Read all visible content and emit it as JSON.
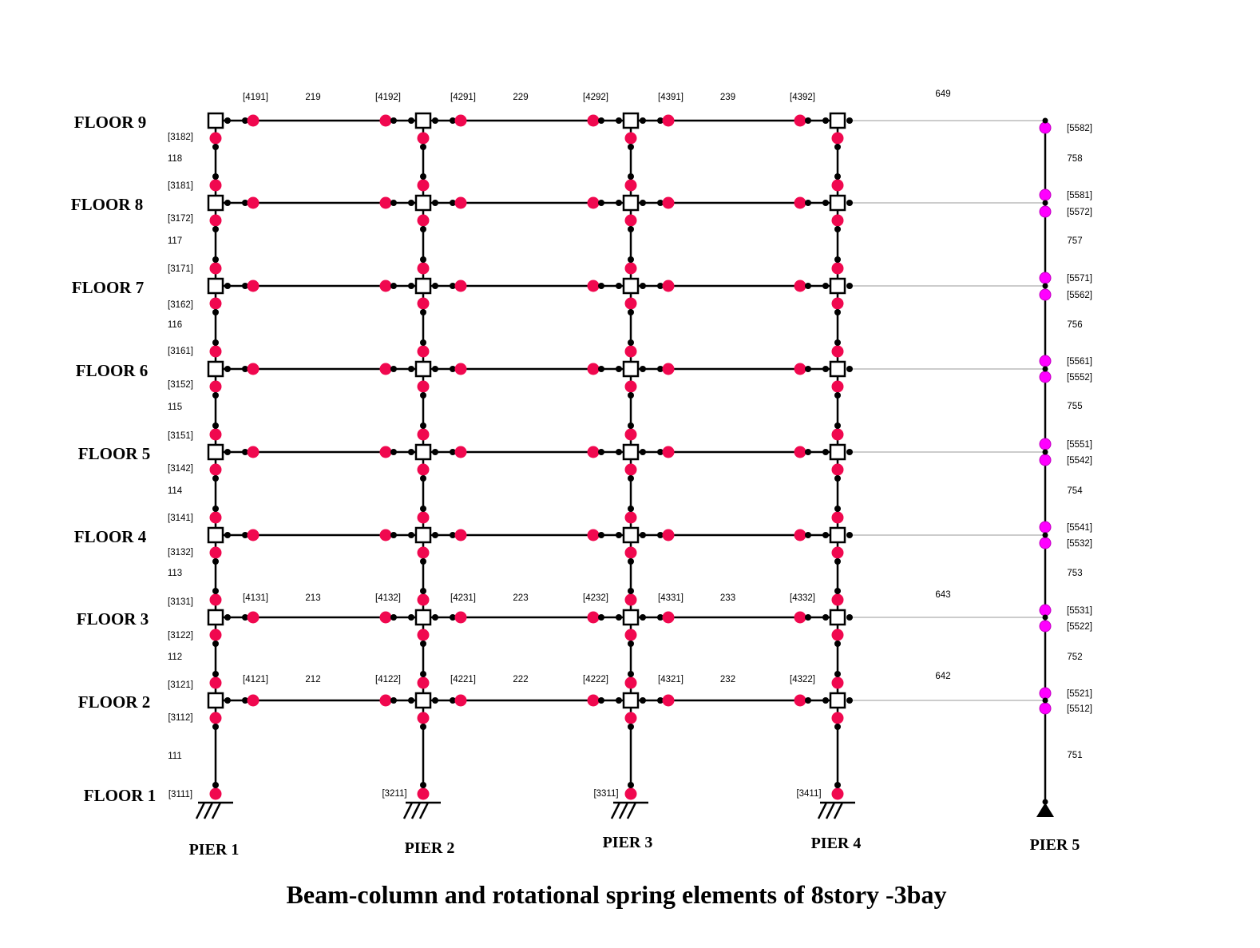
{
  "title": "Beam-column and rotational spring elements of 8story -3bay",
  "floors": [
    {
      "label": "FLOOR 1"
    },
    {
      "label": "FLOOR 2"
    },
    {
      "label": "FLOOR 3"
    },
    {
      "label": "FLOOR 4"
    },
    {
      "label": "FLOOR 5"
    },
    {
      "label": "FLOOR 6"
    },
    {
      "label": "FLOOR 7"
    },
    {
      "label": "FLOOR 8"
    },
    {
      "label": "FLOOR 9"
    }
  ],
  "piers": [
    {
      "label": "PIER 1"
    },
    {
      "label": "PIER 2"
    },
    {
      "label": "PIER 3"
    },
    {
      "label": "PIER 4"
    },
    {
      "label": "PIER 5"
    }
  ],
  "column_element_labels": [
    "111",
    "112",
    "113",
    "114",
    "115",
    "116",
    "117",
    "118"
  ],
  "leaning_column_labels": [
    "751",
    "752",
    "753",
    "754",
    "755",
    "756",
    "757",
    "758"
  ],
  "column_spring_labels": [
    "[3111]",
    "[3112]",
    "[3121]",
    "[3122]",
    "[3131]",
    "[3132]",
    "[3141]",
    "[3142]",
    "[3151]",
    "[3152]",
    "[3161]",
    "[3162]",
    "[3171]",
    "[3172]",
    "[3181]",
    "[3182]"
  ],
  "base_spring_labels": [
    "[3211]",
    "[3311]",
    "[3411]"
  ],
  "leaning_spring_labels": [
    "[5512]",
    "[5521]",
    "[5522]",
    "[5531]",
    "[5532]",
    "[5541]",
    "[5542]",
    "[5551]",
    "[5552]",
    "[5561]",
    "[5562]",
    "[5571]",
    "[5572]",
    "[5581]",
    "[5582]"
  ],
  "beam_rows": [
    {
      "floor": "FLOOR 2",
      "bays": [
        {
          "left": "[4121]",
          "element": "212",
          "right": "[4122]"
        },
        {
          "left": "[4221]",
          "element": "222",
          "right": "[4222]"
        },
        {
          "left": "[4321]",
          "element": "232",
          "right": "[4322]"
        }
      ],
      "truss": "642"
    },
    {
      "floor": "FLOOR 3",
      "bays": [
        {
          "left": "[4131]",
          "element": "213",
          "right": "[4132]"
        },
        {
          "left": "[4231]",
          "element": "223",
          "right": "[4232]"
        },
        {
          "left": "[4331]",
          "element": "233",
          "right": "[4332]"
        }
      ],
      "truss": "643"
    },
    {
      "floor": "FLOOR 9",
      "bays": [
        {
          "left": "[4191]",
          "element": "219",
          "right": "[4192]"
        },
        {
          "left": "[4291]",
          "element": "229",
          "right": "[4292]"
        },
        {
          "left": "[4391]",
          "element": "239",
          "right": "[4392]"
        }
      ],
      "truss": "649"
    }
  ],
  "colors": {
    "frame": "#000000",
    "spring": "#f0084f",
    "leaning_spring": "#ff00ff",
    "truss": "#cccccc"
  }
}
